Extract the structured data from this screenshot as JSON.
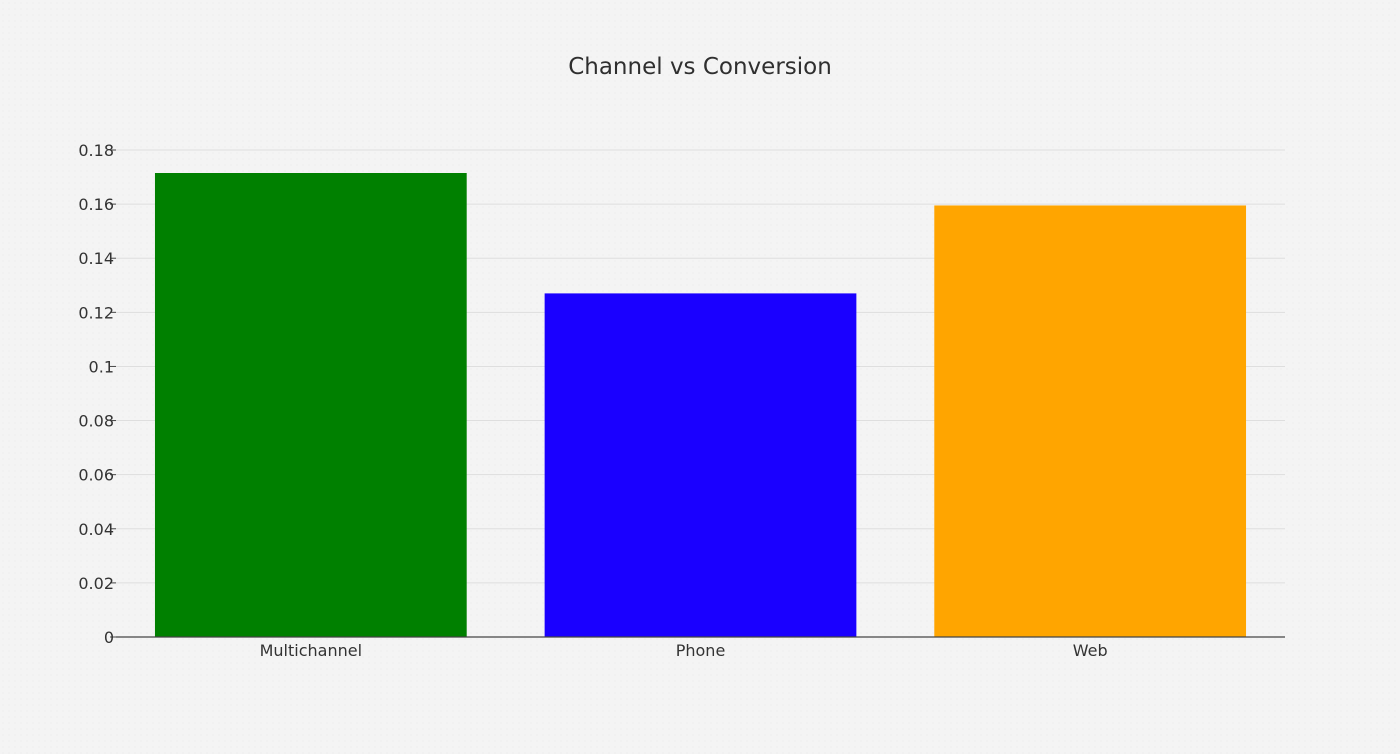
{
  "chart_data": {
    "type": "bar",
    "title": "Channel vs Conversion",
    "xlabel": "",
    "ylabel": "",
    "categories": [
      "Multichannel",
      "Phone",
      "Web"
    ],
    "values": [
      0.1715,
      0.127,
      0.1595
    ],
    "colors": [
      "#008000",
      "#1a00ff",
      "#ffa500"
    ],
    "ylim": [
      0,
      0.18
    ],
    "yticks": [
      0,
      0.02,
      0.04,
      0.06,
      0.08,
      0.1,
      0.12,
      0.14,
      0.16,
      0.18
    ],
    "ytick_labels": [
      "0",
      "0.02",
      "0.04",
      "0.06",
      "0.08",
      "0.1",
      "0.12",
      "0.14",
      "0.16",
      "0.18"
    ],
    "grid": true,
    "legend": "none"
  }
}
